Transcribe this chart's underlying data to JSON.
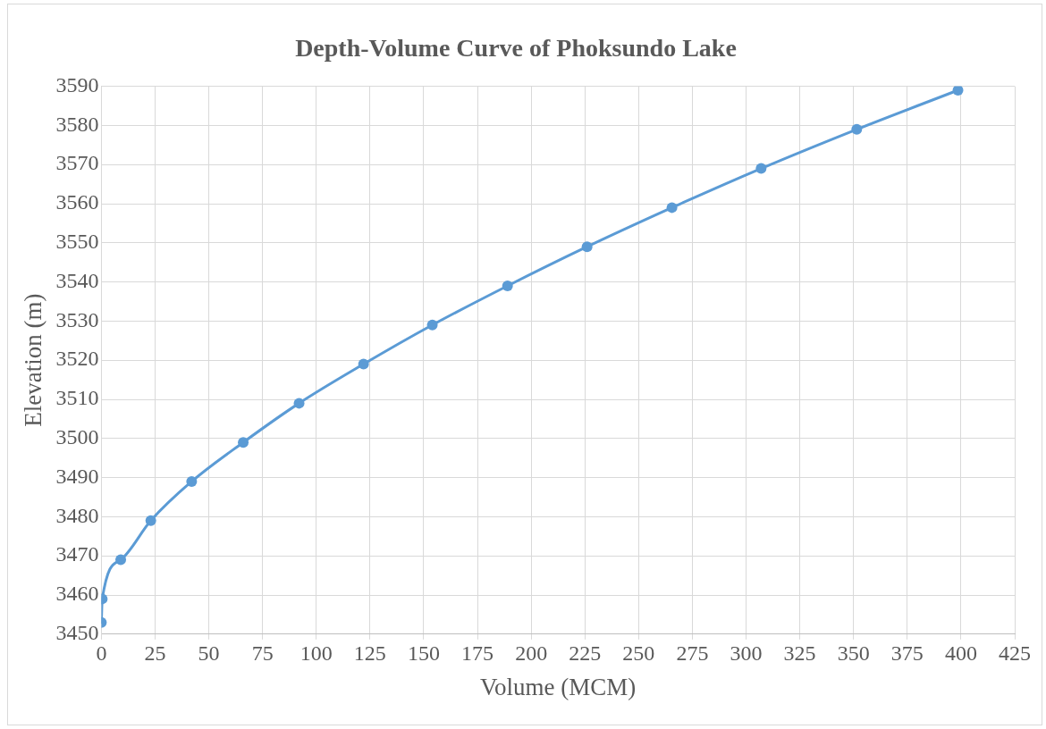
{
  "chart_data": {
    "type": "line",
    "title": "Depth-Volume Curve of Phoksundo Lake",
    "xlabel": "Volume (MCM)",
    "ylabel": "Elevation (m)",
    "series": [
      {
        "color": "#5b9bd5",
        "x": [
          0,
          0.4,
          9,
          23,
          42,
          66,
          92,
          122,
          154,
          189,
          226,
          265.5,
          307,
          351.5,
          398.6
        ],
        "values": [
          3453,
          3459,
          3469,
          3479,
          3489,
          3499,
          3509,
          3519,
          3529,
          3539,
          3549,
          3559,
          3569,
          3579,
          3589
        ]
      }
    ],
    "xlim": [
      0,
      425
    ],
    "xticks": [
      0,
      25,
      50,
      75,
      100,
      125,
      150,
      175,
      200,
      225,
      250,
      275,
      300,
      325,
      350,
      375,
      400,
      425
    ],
    "ylim": [
      3450,
      3590
    ],
    "yticks": [
      3450,
      3460,
      3470,
      3480,
      3490,
      3500,
      3510,
      3520,
      3530,
      3540,
      3550,
      3560,
      3570,
      3580,
      3590
    ],
    "grid": true,
    "legend": false,
    "marker": "circle",
    "line_style": "solid"
  }
}
